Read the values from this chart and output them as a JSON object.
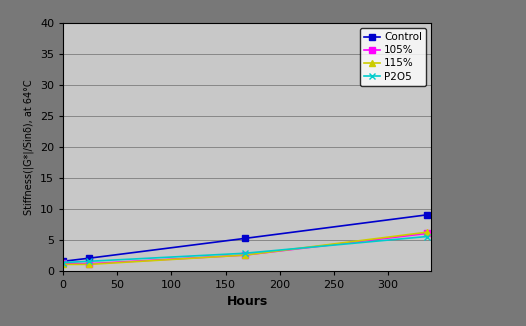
{
  "series": [
    {
      "label": "Control",
      "x": [
        0,
        24,
        168,
        336
      ],
      "y": [
        1.5,
        2.0,
        5.2,
        9.0
      ],
      "color": "#0000CC",
      "marker": "s",
      "markersize": 4,
      "linewidth": 1.2
    },
    {
      "label": "105%",
      "x": [
        0,
        24,
        168,
        336
      ],
      "y": [
        1.2,
        1.1,
        2.5,
        6.0
      ],
      "color": "#FF00FF",
      "marker": "s",
      "markersize": 4,
      "linewidth": 1.2
    },
    {
      "label": "115%",
      "x": [
        0,
        24,
        168,
        336
      ],
      "y": [
        1.0,
        1.0,
        2.5,
        6.2
      ],
      "color": "#CCCC00",
      "marker": "^",
      "markersize": 4,
      "linewidth": 1.2
    },
    {
      "label": "P2O5",
      "x": [
        0,
        24,
        168,
        336
      ],
      "y": [
        1.3,
        1.5,
        2.8,
        5.5
      ],
      "color": "#00CCCC",
      "marker": "x",
      "markersize": 4,
      "linewidth": 1.2
    }
  ],
  "xlabel": "Hours",
  "ylabel": "Stiffness(|G*|/Sinδ), at 64°C",
  "xlim": [
    0,
    340
  ],
  "ylim": [
    0,
    40
  ],
  "yticks": [
    0,
    5,
    10,
    15,
    20,
    25,
    30,
    35,
    40
  ],
  "xticks": [
    0,
    50,
    100,
    150,
    200,
    250,
    300
  ],
  "grid_color": "#888888",
  "plot_bg_color": "#C8C8C8",
  "fig_bg_color": "#787878",
  "xlabel_fontsize": 9,
  "ylabel_fontsize": 7,
  "tick_fontsize": 8,
  "legend_fontsize": 7.5
}
